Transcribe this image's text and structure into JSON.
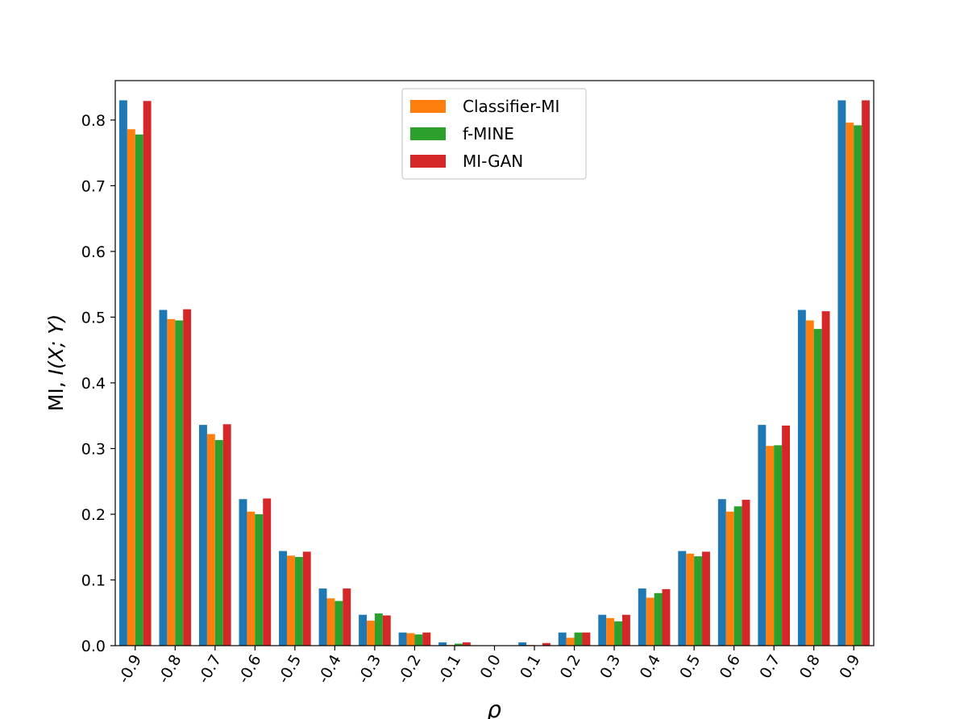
{
  "chart_data": {
    "type": "bar",
    "xlabel": "ρ",
    "ylabel_prefix": "MI, ",
    "ylabel_math": "I(X; Y)",
    "ylim": [
      0,
      0.86
    ],
    "yticks": [
      "0.0",
      "0.1",
      "0.2",
      "0.3",
      "0.4",
      "0.5",
      "0.6",
      "0.7",
      "0.8"
    ],
    "categories": [
      "-0.9",
      "-0.8",
      "-0.7",
      "-0.6",
      "-0.5",
      "-0.4",
      "-0.3",
      "-0.2",
      "-0.1",
      "0.0",
      "0.1",
      "0.2",
      "0.3",
      "0.4",
      "0.5",
      "0.6",
      "0.7",
      "0.8",
      "0.9"
    ],
    "legend_position": "upper center",
    "series": [
      {
        "color": "#1f77b4",
        "values": [
          0.83,
          0.511,
          0.336,
          0.223,
          0.144,
          0.087,
          0.047,
          0.02,
          0.005,
          0.0,
          0.005,
          0.02,
          0.047,
          0.087,
          0.144,
          0.223,
          0.336,
          0.511,
          0.83
        ]
      },
      {
        "name": "Classifier-MI",
        "color": "#ff7f0e",
        "values": [
          0.786,
          0.497,
          0.322,
          0.204,
          0.137,
          0.072,
          0.038,
          0.019,
          0.001,
          0.0,
          0.001,
          0.012,
          0.042,
          0.073,
          0.14,
          0.204,
          0.304,
          0.495,
          0.796
        ]
      },
      {
        "name": "f-MINE",
        "color": "#2ca02c",
        "values": [
          0.778,
          0.495,
          0.313,
          0.2,
          0.135,
          0.068,
          0.049,
          0.017,
          0.003,
          0.0,
          0.0,
          0.02,
          0.037,
          0.08,
          0.136,
          0.212,
          0.305,
          0.482,
          0.792
        ]
      },
      {
        "name": "MI-GAN",
        "color": "#d62728",
        "values": [
          0.829,
          0.512,
          0.337,
          0.224,
          0.143,
          0.087,
          0.046,
          0.02,
          0.005,
          0.0,
          0.004,
          0.02,
          0.047,
          0.086,
          0.143,
          0.222,
          0.335,
          0.509,
          0.83
        ]
      }
    ]
  }
}
